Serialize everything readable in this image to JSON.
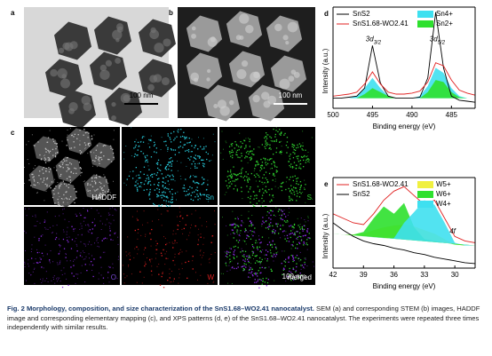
{
  "figure": {
    "a": {
      "label": "a",
      "scale_bar": "100 nm"
    },
    "b": {
      "label": "b",
      "scale_bar": "100 nm"
    },
    "c": {
      "label": "c",
      "tiles": [
        "HADDF",
        "Sn",
        "S",
        "O",
        "W",
        "merged"
      ],
      "scale_bar": "100 nm"
    }
  },
  "chart_data": [
    {
      "type": "line",
      "label": "d",
      "xlabel": "Binding energy (eV)",
      "ylabel": "Intensity (a.u.)",
      "x": [
        500,
        499,
        498,
        497,
        496,
        495,
        494,
        493,
        492,
        491,
        490,
        489,
        488,
        487,
        486,
        485,
        484,
        483,
        482
      ],
      "xlim": [
        500,
        482
      ],
      "xticks": [
        500,
        495,
        490,
        485
      ],
      "ylim": [
        0,
        1
      ],
      "series": [
        {
          "name": "Sn4+",
          "color": "#3fe0f0",
          "fill": true,
          "values": [
            0.1,
            0.1,
            0.1,
            0.12,
            0.2,
            0.3,
            0.2,
            0.12,
            0.1,
            0.1,
            0.1,
            0.12,
            0.22,
            0.4,
            0.35,
            0.2,
            0.12,
            0.1,
            0.1
          ]
        },
        {
          "name": "Sn2+",
          "color": "#2ee02e",
          "fill": true,
          "values": [
            0.1,
            0.1,
            0.1,
            0.1,
            0.14,
            0.2,
            0.16,
            0.12,
            0.1,
            0.1,
            0.1,
            0.1,
            0.16,
            0.28,
            0.26,
            0.16,
            0.11,
            0.1,
            0.1
          ]
        },
        {
          "name": "SnS2",
          "color": "#000000",
          "fill": false,
          "values": [
            0.1,
            0.1,
            0.11,
            0.12,
            0.2,
            0.62,
            0.25,
            0.12,
            0.1,
            0.1,
            0.1,
            0.11,
            0.3,
            0.95,
            0.4,
            0.12,
            0.08,
            0.07,
            0.06
          ]
        },
        {
          "name": "SnS1.68-WO2.41",
          "color": "#e02020",
          "fill": false,
          "values": [
            0.12,
            0.13,
            0.14,
            0.16,
            0.24,
            0.36,
            0.24,
            0.16,
            0.14,
            0.14,
            0.15,
            0.17,
            0.26,
            0.45,
            0.42,
            0.28,
            0.18,
            0.15,
            0.13
          ]
        }
      ],
      "annotations": [
        {
          "text": "3d",
          "sub": "3/2"
        },
        {
          "text": "3d",
          "sub": "5/2"
        }
      ]
    },
    {
      "type": "line",
      "label": "e",
      "xlabel": "Binding energy (eV)",
      "ylabel": "Intensity (a.u.)",
      "x": [
        42,
        41,
        40,
        39,
        38,
        37,
        36,
        35,
        34,
        33,
        32,
        31,
        30,
        29,
        28
      ],
      "xlim": [
        42,
        28
      ],
      "xticks": [
        42,
        39,
        36,
        33,
        30
      ],
      "ylim": [
        0,
        1
      ],
      "series": [
        {
          "name": "W5+",
          "color": "#f0f040",
          "fill": true,
          "values": [
            0.38,
            0.37,
            0.37,
            0.38,
            0.42,
            0.45,
            0.47,
            0.48,
            0.46,
            0.42,
            0.38,
            0.32,
            0.26,
            0.25,
            0.25
          ]
        },
        {
          "name": "W6+",
          "color": "#2ee02e",
          "fill": true,
          "values": [
            0.38,
            0.37,
            0.37,
            0.4,
            0.55,
            0.68,
            0.6,
            0.72,
            0.45,
            0.32,
            0.3,
            0.28,
            0.26,
            0.25,
            0.25
          ]
        },
        {
          "name": "W4+",
          "color": "#3fe0f0",
          "fill": true,
          "values": [
            0.38,
            0.37,
            0.36,
            0.35,
            0.34,
            0.33,
            0.33,
            0.5,
            0.62,
            0.75,
            0.7,
            0.5,
            0.28,
            0.25,
            0.25
          ]
        },
        {
          "name": "SnS1.68-WO2.41",
          "color": "#e02020",
          "fill": false,
          "values": [
            0.6,
            0.55,
            0.5,
            0.48,
            0.6,
            0.75,
            0.85,
            0.9,
            0.8,
            0.7,
            0.75,
            0.55,
            0.35,
            0.3,
            0.28
          ]
        },
        {
          "name": "SnS2",
          "color": "#000000",
          "fill": false,
          "values": [
            0.5,
            0.42,
            0.35,
            0.3,
            0.27,
            0.25,
            0.22,
            0.2,
            0.17,
            0.15,
            0.12,
            0.1,
            0.08,
            0.06,
            0.05
          ]
        }
      ],
      "annotations": [
        {
          "text": "4f"
        }
      ]
    }
  ],
  "caption": {
    "bold": "Fig. 2 Morphology, composition, and size characterization of the SnS1.68–WO2.41 nanocatalyst.",
    "text": "SEM (a) and corresponding STEM (b) images, HADDF image and corresponding elementary mapping (c), and XPS patterns (d, e) of the SnS1.68–WO2.41 nanocatalyst. The experiments were repeated three times independently with similar results."
  }
}
